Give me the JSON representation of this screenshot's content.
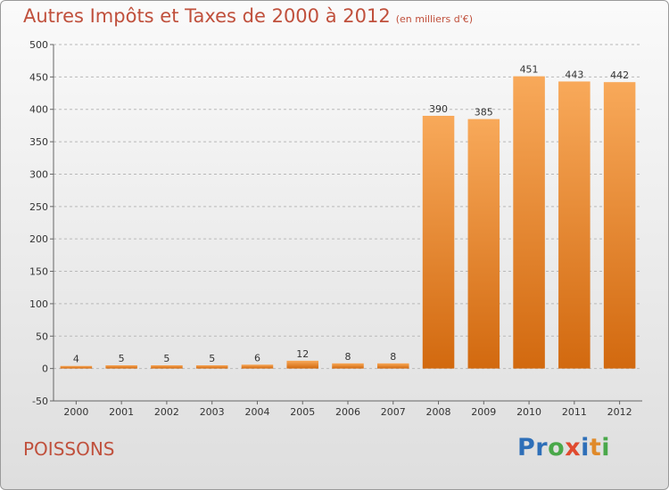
{
  "header": {
    "title": "Autres Impôts et Taxes de 2000 à 2012",
    "unit": "(en milliers d'€)"
  },
  "footer": {
    "city": "POISSONS",
    "logo": [
      "P",
      "r",
      "o",
      "x",
      "i",
      "t",
      "i"
    ],
    "logo_colors": [
      "#2e6fb8",
      "#2e6fb8",
      "#4aa84a",
      "#e04a2f",
      "#2e6fb8",
      "#e08a2a",
      "#4aa84a"
    ]
  },
  "colors": {
    "bar_top": "#f8a95a",
    "bar_bottom": "#d2690f",
    "accent": "#c0503c"
  },
  "chart_data": {
    "type": "bar",
    "title": "Autres Impôts et Taxes de 2000 à 2012",
    "subtitle": "(en milliers d'€)",
    "categories": [
      "2000",
      "2001",
      "2002",
      "2003",
      "2004",
      "2005",
      "2006",
      "2007",
      "2008",
      "2009",
      "2010",
      "2011",
      "2012"
    ],
    "values": [
      4,
      5,
      5,
      5,
      6,
      12,
      8,
      8,
      390,
      385,
      451,
      443,
      442
    ],
    "ylim": [
      -50,
      500
    ],
    "yticks": [
      -50,
      0,
      50,
      100,
      150,
      200,
      250,
      300,
      350,
      400,
      450,
      500
    ],
    "grid": "horizontal-dashed",
    "xlabel": "",
    "ylabel": ""
  }
}
